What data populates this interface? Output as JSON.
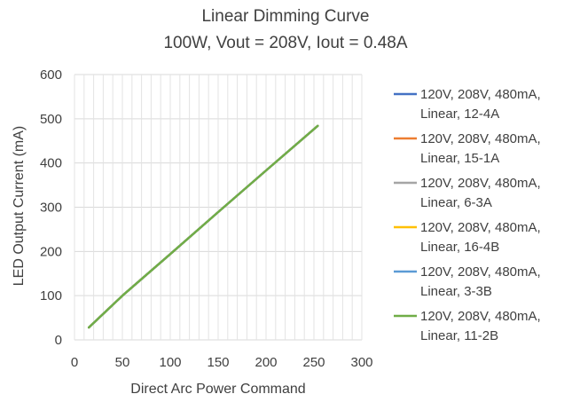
{
  "chart_data": {
    "type": "line",
    "title": "Linear Dimming Curve",
    "subtitle": "100W, Vout = 208V, Iout = 0.48A",
    "xlabel": "Direct Arc Power Command",
    "ylabel": "LED Output Current (mA)",
    "xlim": [
      0,
      300
    ],
    "ylim": [
      0,
      600
    ],
    "xticks": [
      0,
      50,
      100,
      150,
      200,
      250,
      300
    ],
    "yticks": [
      0,
      100,
      200,
      300,
      400,
      500,
      600
    ],
    "grid": "both",
    "legend_position": "right",
    "series": [
      {
        "name_lines": [
          "120V, 208V, 480mA,",
          "Linear, 12-4A"
        ],
        "color": "#4472C4",
        "x": [
          15,
          50,
          100,
          150,
          200,
          254
        ],
        "y": [
          28,
          100,
          194,
          289,
          383,
          484
        ]
      },
      {
        "name_lines": [
          "120V, 208V, 480mA,",
          "Linear, 15-1A"
        ],
        "color": "#ED7D31",
        "x": [
          15,
          50,
          100,
          150,
          200,
          254
        ],
        "y": [
          28,
          100,
          194,
          289,
          383,
          484
        ]
      },
      {
        "name_lines": [
          "120V, 208V, 480mA,",
          "Linear, 6-3A"
        ],
        "color": "#A5A5A5",
        "x": [
          15,
          50,
          100,
          150,
          200,
          254
        ],
        "y": [
          28,
          100,
          194,
          289,
          383,
          484
        ]
      },
      {
        "name_lines": [
          "120V, 208V, 480mA,",
          "Linear, 16-4B"
        ],
        "color": "#FFC000",
        "x": [
          15,
          50,
          100,
          150,
          200,
          254
        ],
        "y": [
          28,
          100,
          194,
          289,
          383,
          484
        ]
      },
      {
        "name_lines": [
          "120V, 208V, 480mA,",
          "Linear, 3-3B"
        ],
        "color": "#5B9BD5",
        "x": [
          15,
          50,
          100,
          150,
          200,
          254
        ],
        "y": [
          28,
          100,
          194,
          289,
          383,
          484
        ]
      },
      {
        "name_lines": [
          "120V, 208V, 480mA,",
          "Linear, 11-2B"
        ],
        "color": "#70AD47",
        "x": [
          15,
          50,
          100,
          150,
          200,
          254
        ],
        "y": [
          28,
          100,
          194,
          289,
          383,
          484
        ]
      }
    ]
  }
}
